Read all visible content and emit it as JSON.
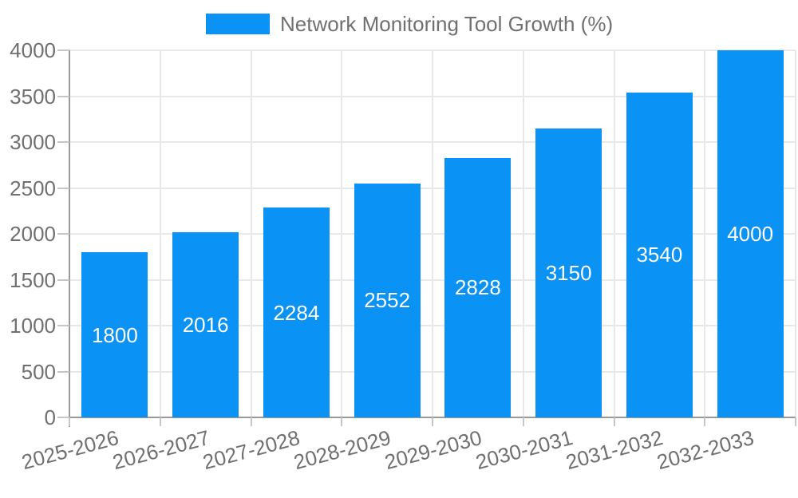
{
  "chart_data": {
    "type": "bar",
    "legend": {
      "label": "Network Monitoring Tool Growth (%)",
      "position": "top"
    },
    "categories": [
      "2025-2026",
      "2026-2027",
      "2027-2028",
      "2028-2029",
      "2029-2030",
      "2030-2031",
      "2031-2032",
      "2032-2033"
    ],
    "values": [
      1800,
      2016,
      2284,
      2552,
      2828,
      3150,
      3540,
      4000
    ],
    "ylim": [
      0,
      4000
    ],
    "yticks": [
      0,
      500,
      1000,
      1500,
      2000,
      2500,
      3000,
      3500,
      4000
    ],
    "grid": true,
    "x_label_rotation_deg": 15,
    "bar_labels_inside": true,
    "colors": {
      "bar": "#0b92f5",
      "bar_label": "#ffffff",
      "text": "#707070",
      "gridline": "#e8e8e8",
      "axis_line": "#999999",
      "tick": "#c6c6c6",
      "background": "#ffffff"
    }
  }
}
